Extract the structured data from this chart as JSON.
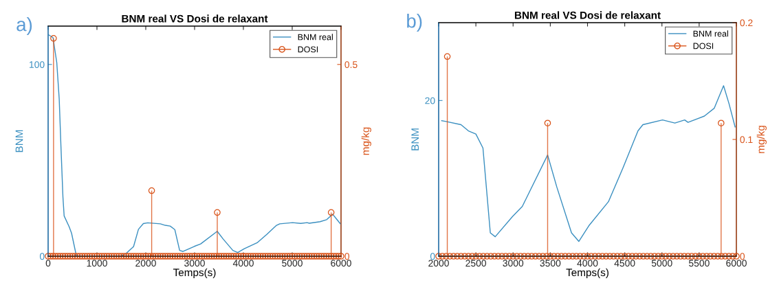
{
  "chart_data": [
    {
      "type": "line",
      "title": "BNM real VS Dosi de relaxant",
      "xlabel": "Temps(s)",
      "ylabel": "BNM",
      "y2label": "mg/kg",
      "annotations": [
        "a)"
      ],
      "xlim": [
        0,
        6000
      ],
      "xticks": [
        0,
        1000,
        2000,
        3000,
        4000,
        5000,
        6000
      ],
      "ylim": [
        0,
        120
      ],
      "yticks": [
        0,
        100
      ],
      "y2lim": [
        0,
        0.6
      ],
      "y2ticks": [
        0,
        0.5
      ],
      "legend": "top right",
      "grid": false,
      "series": [
        {
          "name": "BNM real",
          "color": "#3a8fc0",
          "x": [
            0,
            100,
            177,
            227,
            263,
            303,
            328,
            430,
            480,
            580,
            1000,
            1480,
            1600,
            1750,
            1850,
            1950,
            2040,
            2300,
            2400,
            2500,
            2595,
            2694,
            2760,
            2992,
            3124,
            3464,
            3587,
            3785,
            3884,
            4017,
            4281,
            4479,
            4678,
            4744,
            5008,
            5174,
            5306,
            5350,
            5570,
            5702,
            5828,
            5901,
            6000
          ],
          "values": [
            115.6,
            114,
            101,
            82,
            57,
            31,
            21,
            15.4,
            12,
            0,
            0,
            0,
            1.5,
            5,
            14,
            17,
            17.4,
            16.9,
            16.1,
            15.7,
            13.9,
            3,
            2.5,
            5.1,
            6.4,
            13.0,
            8.9,
            3,
            1.9,
            3.9,
            7.0,
            11.4,
            16.1,
            16.9,
            17.5,
            17.1,
            17.5,
            17.2,
            18.0,
            19.0,
            21.9,
            19.6,
            16.5
          ]
        },
        {
          "name": "DOSI",
          "type": "lollipop",
          "axis": "y2",
          "color": "#d95319",
          "marker": "circle",
          "x": [
            0,
            50,
            100,
            111,
            150,
            200,
            250,
            300,
            350,
            400,
            450,
            500,
            550,
            600,
            650,
            700,
            750,
            800,
            850,
            900,
            950,
            1000,
            1050,
            1100,
            1150,
            1200,
            1250,
            1300,
            1350,
            1400,
            1450,
            1500,
            1550,
            1600,
            1650,
            1700,
            1750,
            1800,
            1850,
            1900,
            1950,
            2000,
            2050,
            2100,
            2121,
            2150,
            2200,
            2250,
            2300,
            2350,
            2400,
            2450,
            2500,
            2550,
            2600,
            2650,
            2700,
            2750,
            2800,
            2850,
            2900,
            2950,
            3000,
            3050,
            3100,
            3150,
            3200,
            3250,
            3300,
            3350,
            3400,
            3450,
            3465,
            3500,
            3550,
            3600,
            3650,
            3700,
            3750,
            3800,
            3850,
            3900,
            3950,
            4000,
            4050,
            4100,
            4150,
            4200,
            4250,
            4300,
            4350,
            4400,
            4450,
            4500,
            4550,
            4600,
            4650,
            4700,
            4750,
            4800,
            4850,
            4900,
            4950,
            5000,
            5050,
            5100,
            5150,
            5200,
            5250,
            5300,
            5350,
            5400,
            5450,
            5500,
            5550,
            5600,
            5650,
            5700,
            5750,
            5798,
            5800,
            5850,
            5900,
            5950,
            6000
          ],
          "values": [
            0,
            0,
            0,
            0.568,
            0,
            0,
            0,
            0,
            0,
            0,
            0,
            0,
            0,
            0,
            0,
            0,
            0,
            0,
            0,
            0,
            0,
            0,
            0,
            0,
            0,
            0,
            0,
            0,
            0,
            0,
            0,
            0,
            0,
            0,
            0,
            0,
            0,
            0,
            0,
            0,
            0,
            0,
            0,
            0,
            0.171,
            0,
            0,
            0,
            0,
            0,
            0,
            0,
            0,
            0,
            0,
            0,
            0,
            0,
            0,
            0,
            0,
            0,
            0,
            0,
            0,
            0,
            0,
            0,
            0,
            0,
            0,
            0,
            0.114,
            0,
            0,
            0,
            0,
            0,
            0,
            0,
            0,
            0,
            0,
            0,
            0,
            0,
            0,
            0,
            0,
            0,
            0,
            0,
            0,
            0,
            0,
            0,
            0,
            0,
            0,
            0,
            0,
            0,
            0,
            0,
            0,
            0,
            0,
            0,
            0,
            0,
            0,
            0,
            0,
            0,
            0,
            0,
            0,
            0,
            0,
            0.114,
            0,
            0,
            0,
            0,
            0
          ]
        }
      ]
    },
    {
      "type": "line",
      "title": "BNM real VS Dosi de relaxant",
      "xlabel": "Temps(s)",
      "ylabel": "BNM",
      "y2label": "mg/kg",
      "annotations": [
        "b)"
      ],
      "xlim": [
        2000,
        6000
      ],
      "xticks": [
        2000,
        2500,
        3000,
        3500,
        4000,
        4500,
        5000,
        5500,
        6000
      ],
      "ylim": [
        0,
        30
      ],
      "yticks": [
        0,
        20
      ],
      "y2lim": [
        0,
        0.2
      ],
      "y2ticks": [
        0,
        0.1,
        0.2
      ],
      "legend": "top right",
      "grid": false,
      "series": [
        {
          "name": "BNM real",
          "color": "#3a8fc0",
          "x": [
            2040,
            2100,
            2300,
            2400,
            2500,
            2595,
            2694,
            2760,
            2992,
            3124,
            3464,
            3587,
            3785,
            3884,
            4017,
            4281,
            4479,
            4678,
            4744,
            5008,
            5174,
            5306,
            5350,
            5570,
            5702,
            5828,
            5901,
            5983
          ],
          "values": [
            17.4,
            17.3,
            16.9,
            16.1,
            15.7,
            13.9,
            3,
            2.5,
            5.1,
            6.4,
            13.0,
            8.9,
            3,
            1.9,
            3.9,
            7.0,
            11.4,
            16.1,
            16.9,
            17.5,
            17.1,
            17.5,
            17.2,
            18.0,
            19.0,
            21.9,
            19.6,
            16.6
          ]
        },
        {
          "name": "DOSI",
          "type": "lollipop",
          "axis": "y2",
          "color": "#d95319",
          "marker": "circle",
          "x": [
            2000,
            2050,
            2100,
            2116,
            2150,
            2200,
            2250,
            2300,
            2350,
            2400,
            2450,
            2500,
            2550,
            2600,
            2650,
            2700,
            2750,
            2800,
            2850,
            2900,
            2950,
            3000,
            3050,
            3100,
            3150,
            3200,
            3250,
            3300,
            3350,
            3400,
            3450,
            3464,
            3500,
            3550,
            3600,
            3650,
            3700,
            3750,
            3800,
            3850,
            3900,
            3950,
            4000,
            4050,
            4100,
            4150,
            4200,
            4250,
            4300,
            4350,
            4400,
            4450,
            4500,
            4550,
            4600,
            4650,
            4700,
            4750,
            4800,
            4850,
            4900,
            4950,
            5000,
            5050,
            5100,
            5150,
            5200,
            5250,
            5300,
            5350,
            5400,
            5450,
            5500,
            5550,
            5600,
            5650,
            5700,
            5750,
            5795,
            5800,
            5850,
            5900,
            5950,
            6000
          ],
          "values": [
            0,
            0,
            0,
            0.171,
            0,
            0,
            0,
            0,
            0,
            0,
            0,
            0,
            0,
            0,
            0,
            0,
            0,
            0,
            0,
            0,
            0,
            0,
            0,
            0,
            0,
            0,
            0,
            0,
            0,
            0,
            0,
            0.114,
            0,
            0,
            0,
            0,
            0,
            0,
            0,
            0,
            0,
            0,
            0,
            0,
            0,
            0,
            0,
            0,
            0,
            0,
            0,
            0,
            0,
            0,
            0,
            0,
            0,
            0,
            0,
            0,
            0,
            0,
            0,
            0,
            0,
            0,
            0,
            0,
            0,
            0,
            0,
            0,
            0,
            0,
            0,
            0,
            0,
            0,
            0.114,
            0,
            0,
            0,
            0,
            0
          ]
        }
      ]
    }
  ]
}
